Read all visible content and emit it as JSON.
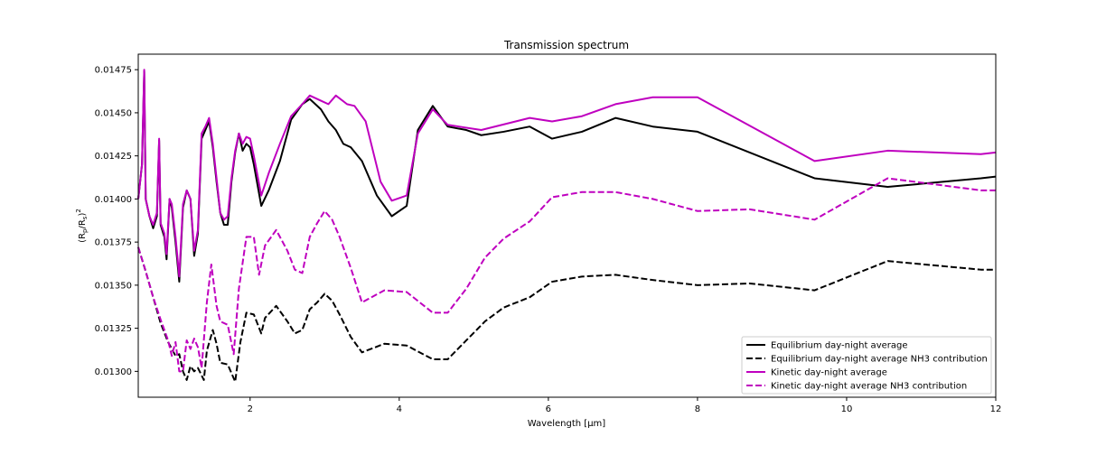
{
  "chart_data": {
    "type": "line",
    "title": "Transmission spectrum",
    "xlabel": "Wavelength [μm]",
    "ylabel_parts": [
      "(R",
      "p",
      "/R",
      "s",
      ")",
      "2"
    ],
    "xlim": [
      0.5,
      12
    ],
    "ylim": [
      0.01285,
      0.01484
    ],
    "xticks": [
      2,
      4,
      6,
      8,
      10,
      12
    ],
    "yticks": [
      {
        "value": 0.013,
        "label": "0.01300"
      },
      {
        "value": 0.01325,
        "label": "0.01325"
      },
      {
        "value": 0.0135,
        "label": "0.01350"
      },
      {
        "value": 0.01375,
        "label": "0.01375"
      },
      {
        "value": 0.014,
        "label": "0.01400"
      },
      {
        "value": 0.01425,
        "label": "0.01425"
      },
      {
        "value": 0.0145,
        "label": "0.01450"
      },
      {
        "value": 0.01475,
        "label": "0.01475"
      }
    ],
    "legend": "lower right",
    "series": [
      {
        "name": "Equilibrium day-night average",
        "color": "#000000",
        "dashed": false,
        "x": [
          0.5,
          0.55,
          0.58,
          0.6,
          0.65,
          0.7,
          0.75,
          0.78,
          0.8,
          0.85,
          0.88,
          0.92,
          0.95,
          1.0,
          1.05,
          1.1,
          1.15,
          1.2,
          1.25,
          1.3,
          1.35,
          1.4,
          1.45,
          1.5,
          1.55,
          1.6,
          1.65,
          1.7,
          1.75,
          1.8,
          1.85,
          1.9,
          1.95,
          2.0,
          2.05,
          2.15,
          2.25,
          2.4,
          2.55,
          2.7,
          2.8,
          2.95,
          3.05,
          3.15,
          3.25,
          3.35,
          3.5,
          3.7,
          3.9,
          4.1,
          4.25,
          4.45,
          4.65,
          4.9,
          5.1,
          5.4,
          5.75,
          6.05,
          6.45,
          6.9,
          7.4,
          8.0,
          9.57,
          10.55,
          11.8,
          12
        ],
        "values": [
          0.014,
          0.0142,
          0.01474,
          0.014,
          0.0139,
          0.01383,
          0.0139,
          0.01434,
          0.01385,
          0.01378,
          0.01365,
          0.014,
          0.01395,
          0.01375,
          0.01352,
          0.01395,
          0.01405,
          0.014,
          0.01367,
          0.0138,
          0.01435,
          0.0144,
          0.01445,
          0.0143,
          0.0141,
          0.01392,
          0.01385,
          0.01385,
          0.0141,
          0.01427,
          0.01438,
          0.01428,
          0.01432,
          0.0143,
          0.0142,
          0.01396,
          0.01405,
          0.01422,
          0.01446,
          0.01455,
          0.01458,
          0.01452,
          0.01445,
          0.0144,
          0.01432,
          0.0143,
          0.01422,
          0.01402,
          0.0139,
          0.01396,
          0.0144,
          0.01454,
          0.01442,
          0.0144,
          0.01437,
          0.01439,
          0.01442,
          0.01435,
          0.01439,
          0.01447,
          0.01442,
          0.01439,
          0.01412,
          0.01407,
          0.01412,
          0.01413
        ]
      },
      {
        "name": "Equilibrium day-night average NH3 contribution",
        "color": "#000000",
        "dashed": true,
        "x": [
          0.5,
          0.6,
          0.7,
          0.8,
          0.9,
          1.0,
          1.05,
          1.1,
          1.15,
          1.2,
          1.25,
          1.3,
          1.38,
          1.42,
          1.5,
          1.55,
          1.6,
          1.7,
          1.8,
          1.87,
          1.95,
          2.05,
          2.15,
          2.2,
          2.35,
          2.5,
          2.6,
          2.7,
          2.8,
          2.9,
          3.0,
          3.1,
          3.2,
          3.35,
          3.5,
          3.8,
          4.1,
          4.45,
          4.65,
          4.9,
          5.15,
          5.4,
          5.75,
          6.05,
          6.45,
          6.9,
          7.4,
          8.0,
          8.7,
          9.57,
          10.55,
          11.8,
          12
        ],
        "values": [
          0.01372,
          0.01358,
          0.01343,
          0.01328,
          0.01317,
          0.01309,
          0.0131,
          0.013,
          0.01295,
          0.01303,
          0.013,
          0.01302,
          0.01295,
          0.01312,
          0.01324,
          0.01316,
          0.01305,
          0.01304,
          0.01294,
          0.01317,
          0.01334,
          0.01333,
          0.01322,
          0.01331,
          0.01338,
          0.01329,
          0.01322,
          0.01324,
          0.01336,
          0.0134,
          0.01345,
          0.01341,
          0.01333,
          0.0132,
          0.01311,
          0.01316,
          0.01315,
          0.01307,
          0.01307,
          0.01318,
          0.01329,
          0.01337,
          0.01343,
          0.01352,
          0.01355,
          0.01356,
          0.01353,
          0.0135,
          0.01351,
          0.01347,
          0.01364,
          0.01359,
          0.01359
        ]
      },
      {
        "name": "Kinetic day-night average",
        "color": "#bf00bf",
        "dashed": false,
        "x": [
          0.5,
          0.55,
          0.58,
          0.6,
          0.65,
          0.7,
          0.75,
          0.78,
          0.8,
          0.85,
          0.88,
          0.92,
          0.95,
          1.0,
          1.05,
          1.1,
          1.15,
          1.2,
          1.25,
          1.3,
          1.35,
          1.4,
          1.45,
          1.5,
          1.55,
          1.6,
          1.65,
          1.7,
          1.75,
          1.8,
          1.85,
          1.9,
          1.95,
          2.0,
          2.05,
          2.15,
          2.25,
          2.4,
          2.55,
          2.7,
          2.8,
          2.95,
          3.05,
          3.15,
          3.3,
          3.4,
          3.55,
          3.75,
          3.9,
          4.1,
          4.25,
          4.45,
          4.65,
          5.1,
          5.75,
          6.05,
          6.45,
          6.9,
          7.4,
          8.0,
          9.57,
          10.55,
          11.8,
          12
        ],
        "values": [
          0.014,
          0.0142,
          0.01475,
          0.014,
          0.0139,
          0.01385,
          0.01392,
          0.01435,
          0.01386,
          0.0138,
          0.01368,
          0.014,
          0.01397,
          0.01378,
          0.01355,
          0.01397,
          0.01405,
          0.014,
          0.0137,
          0.01382,
          0.01438,
          0.01442,
          0.01447,
          0.01432,
          0.01412,
          0.01392,
          0.01388,
          0.0139,
          0.01412,
          0.01428,
          0.01438,
          0.01432,
          0.01436,
          0.01435,
          0.01425,
          0.01402,
          0.01415,
          0.01432,
          0.01448,
          0.01455,
          0.0146,
          0.01457,
          0.01455,
          0.0146,
          0.01455,
          0.01454,
          0.01445,
          0.0141,
          0.01399,
          0.01402,
          0.01438,
          0.01452,
          0.01443,
          0.0144,
          0.01447,
          0.01445,
          0.01448,
          0.01455,
          0.01459,
          0.01459,
          0.01422,
          0.01428,
          0.01426,
          0.01427
        ]
      },
      {
        "name": "Kinetic day-night average NH3 contribution",
        "color": "#bf00bf",
        "dashed": true,
        "x": [
          0.5,
          0.6,
          0.7,
          0.8,
          0.9,
          0.95,
          1.0,
          1.05,
          1.1,
          1.15,
          1.2,
          1.25,
          1.3,
          1.35,
          1.42,
          1.48,
          1.55,
          1.6,
          1.7,
          1.78,
          1.85,
          1.95,
          2.05,
          2.12,
          2.2,
          2.35,
          2.5,
          2.6,
          2.7,
          2.8,
          2.9,
          3.0,
          3.1,
          3.2,
          3.35,
          3.5,
          3.8,
          4.1,
          4.45,
          4.65,
          4.9,
          5.15,
          5.4,
          5.75,
          6.05,
          6.45,
          6.9,
          7.4,
          8.0,
          8.7,
          9.57,
          10.55,
          11.8,
          12
        ],
        "values": [
          0.01372,
          0.01358,
          0.01343,
          0.0133,
          0.01318,
          0.01309,
          0.01317,
          0.013,
          0.013,
          0.01318,
          0.01313,
          0.01319,
          0.01314,
          0.01302,
          0.0134,
          0.01362,
          0.01338,
          0.01329,
          0.01327,
          0.0131,
          0.01348,
          0.01378,
          0.01378,
          0.01356,
          0.01373,
          0.01382,
          0.0137,
          0.01359,
          0.01357,
          0.01378,
          0.01386,
          0.01393,
          0.01388,
          0.01378,
          0.0136,
          0.0134,
          0.01347,
          0.01346,
          0.01334,
          0.01334,
          0.01348,
          0.01366,
          0.01377,
          0.01387,
          0.01401,
          0.01404,
          0.01404,
          0.014,
          0.01393,
          0.01394,
          0.01388,
          0.01412,
          0.01405,
          0.01405
        ]
      }
    ]
  }
}
